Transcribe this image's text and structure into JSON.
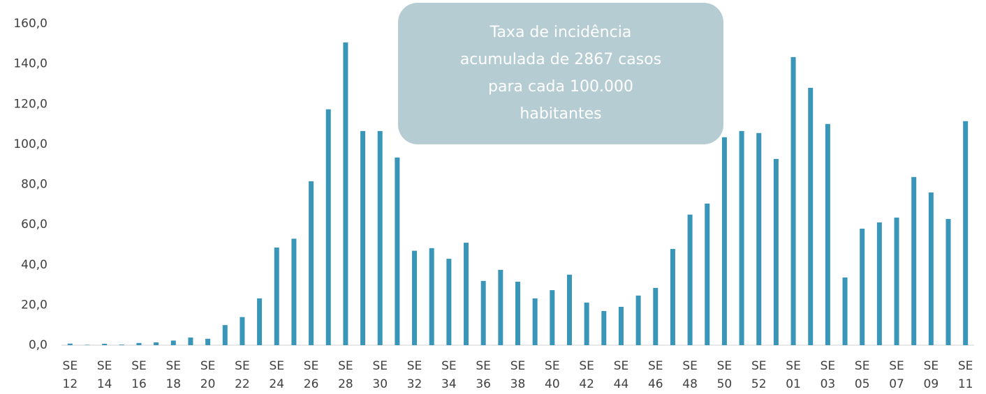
{
  "chart_data": {
    "type": "bar",
    "categories": [
      "SE 12",
      null,
      "SE 14",
      null,
      "SE 16",
      null,
      "SE 18",
      null,
      "SE 20",
      null,
      "SE 22",
      null,
      "SE 24",
      null,
      "SE 26",
      null,
      "SE 28",
      null,
      "SE 30",
      null,
      "SE 32",
      null,
      "SE 34",
      null,
      "SE 36",
      null,
      "SE 38",
      null,
      "SE 40",
      null,
      "SE 42",
      null,
      "SE 44",
      null,
      "SE 46",
      null,
      "SE 48",
      null,
      "SE 50",
      null,
      "SE 52",
      null,
      "SE 01",
      null,
      "SE 03",
      null,
      "SE 05",
      null,
      "SE 07",
      null,
      "SE 09",
      null,
      "SE 11"
    ],
    "values": [
      0.8,
      0.2,
      0.7,
      0.3,
      1.1,
      1.4,
      2.3,
      3.8,
      3.2,
      10.0,
      14.0,
      23.3,
      48.6,
      53.0,
      81.6,
      117.4,
      150.7,
      106.6,
      106.6,
      93.4,
      47.0,
      48.3,
      43.0,
      51.0,
      32.0,
      37.5,
      31.6,
      23.3,
      27.4,
      35.1,
      21.2,
      17.0,
      19.1,
      24.7,
      28.5,
      47.9,
      65.0,
      70.5,
      103.5,
      106.6,
      105.6,
      92.7,
      143.4,
      128.1,
      110.1,
      33.7,
      58.0,
      61.1,
      63.5,
      83.7,
      76.0,
      62.8,
      111.5
    ],
    "color": "#3a96b8",
    "ylim": [
      0,
      160
    ],
    "yticks": [
      {
        "value": 0,
        "label": "0,0"
      },
      {
        "value": 20,
        "label": "20,0"
      },
      {
        "value": 40,
        "label": "40,0"
      },
      {
        "value": 60,
        "label": "60,0"
      },
      {
        "value": 80,
        "label": "80,0"
      },
      {
        "value": 100,
        "label": "100,0"
      },
      {
        "value": 120,
        "label": "120,0"
      },
      {
        "value": 140,
        "label": "140,0"
      },
      {
        "value": 160,
        "label": "160,0"
      }
    ],
    "grid": false,
    "annotation": [
      "Taxa de incidência",
      "acumulada de 2867 casos",
      "para cada 100.000",
      "habitantes"
    ]
  }
}
